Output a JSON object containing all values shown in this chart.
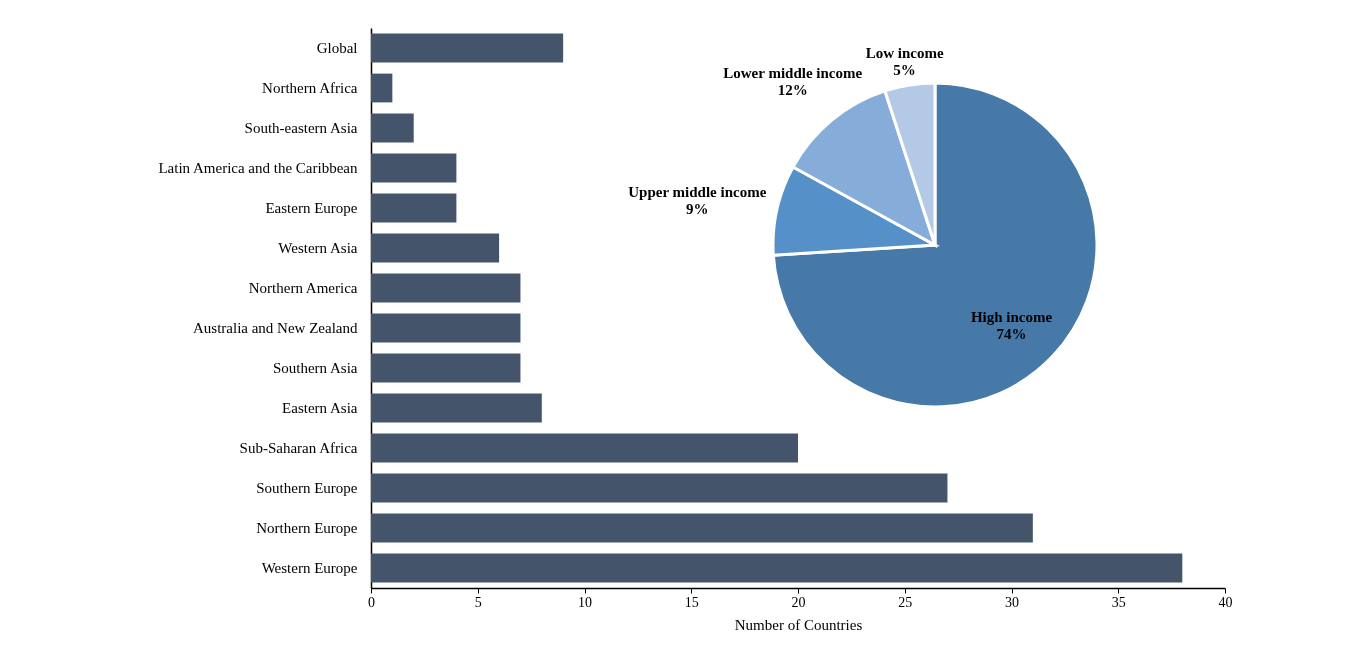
{
  "chart_data": [
    {
      "type": "bar",
      "orientation": "horizontal",
      "categories": [
        "Global",
        "Northern Africa",
        "South-eastern Asia",
        "Latin America and the Caribbean",
        "Eastern Europe",
        "Western Asia",
        "Northern America",
        "Australia and New Zealand",
        "Southern Asia",
        "Eastern Asia",
        "Sub-Saharan Africa",
        "Southern Europe",
        "Northern Europe",
        "Western Europe"
      ],
      "values": [
        9,
        1,
        2,
        4,
        4,
        6,
        7,
        7,
        7,
        8,
        20,
        27,
        31,
        38
      ],
      "color": "#44546a",
      "xlabel": "Number of Countries",
      "xlim": [
        0,
        40
      ],
      "xticks": [
        0,
        5,
        10,
        15,
        20,
        25,
        30,
        35,
        40
      ],
      "grid": false
    },
    {
      "type": "pie",
      "categories": [
        "High income",
        "Upper middle income",
        "Lower middle income",
        "Low income"
      ],
      "values": [
        74,
        9,
        12,
        5
      ],
      "value_labels": [
        "74%",
        "9%",
        "12%",
        "5%"
      ],
      "colors": [
        "#4679a8",
        "#5591c8",
        "#86acd9",
        "#b4c9e6"
      ]
    }
  ]
}
